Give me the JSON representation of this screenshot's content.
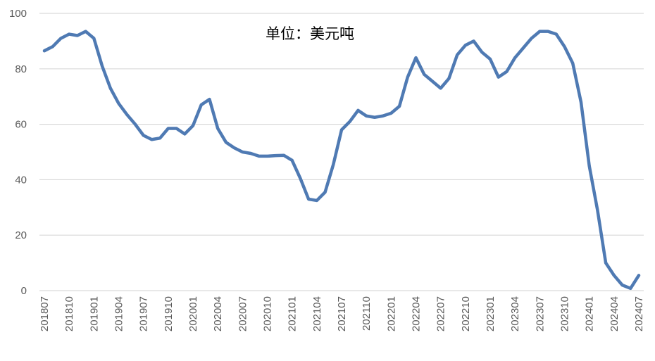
{
  "chart_data": {
    "type": "line",
    "title": "",
    "subtitle": "单位：美元吨",
    "xlabel": "",
    "ylabel": "",
    "ylim": [
      0,
      100
    ],
    "yticks": [
      0,
      20,
      40,
      60,
      80,
      100
    ],
    "grid": true,
    "legend": "none",
    "x": [
      "201807",
      "201808",
      "201809",
      "201810",
      "201811",
      "201812",
      "201901",
      "201902",
      "201903",
      "201904",
      "201905",
      "201906",
      "201907",
      "201908",
      "201909",
      "201910",
      "201911",
      "201912",
      "202001",
      "202002",
      "202003",
      "202004",
      "202005",
      "202006",
      "202007",
      "202008",
      "202009",
      "202010",
      "202011",
      "202012",
      "202101",
      "202102",
      "202103",
      "202104",
      "202105",
      "202106",
      "202107",
      "202108",
      "202109",
      "202110",
      "202111",
      "202112",
      "202201",
      "202202",
      "202203",
      "202204",
      "202205",
      "202206",
      "202207",
      "202208",
      "202209",
      "202210",
      "202211",
      "202212",
      "202301",
      "202302",
      "202303",
      "202304",
      "202305",
      "202306",
      "202307",
      "202308",
      "202309",
      "202310",
      "202311",
      "202312",
      "202401",
      "202402",
      "202403",
      "202404",
      "202405",
      "202406",
      "202407"
    ],
    "x_tick_labels": [
      "201807",
      "201810",
      "201901",
      "201904",
      "201907",
      "201910",
      "202001",
      "202004",
      "202007",
      "202010",
      "202101",
      "202104",
      "202107",
      "202110",
      "202201",
      "202204",
      "202207",
      "202210",
      "202301",
      "202304",
      "202307",
      "202310",
      "202401",
      "202404",
      "202407"
    ],
    "series": [
      {
        "name": "",
        "color": "#4f7ab3",
        "values": [
          86.5,
          88,
          91,
          92.5,
          92,
          93.5,
          91,
          81,
          73,
          67.5,
          63.5,
          60,
          56,
          54.5,
          55,
          58.5,
          58.5,
          56.5,
          59.5,
          67,
          69,
          58.5,
          53.5,
          51.5,
          50,
          49.5,
          48.5,
          48.5,
          48.7,
          48.8,
          47,
          40.5,
          33,
          32.5,
          35.5,
          45.5,
          58,
          61,
          65,
          63,
          62.5,
          63,
          64,
          66.5,
          77,
          84,
          78,
          75.5,
          73,
          76.5,
          85,
          88.5,
          90,
          86,
          83.5,
          77,
          79,
          84,
          87.5,
          91,
          93.5,
          93.5,
          92.5,
          88,
          82,
          68,
          45,
          29,
          10,
          5.5,
          2,
          0.8,
          5.5
        ]
      }
    ]
  }
}
